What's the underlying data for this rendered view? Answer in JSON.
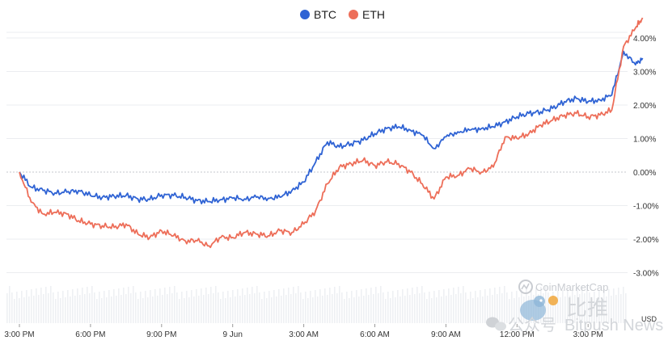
{
  "chart_data": {
    "type": "line",
    "legend_position": "top-center",
    "grid": true,
    "ylim": [
      -3.5,
      4.7
    ],
    "y_ticks": [
      "4.00%",
      "3.00%",
      "2.00%",
      "1.00%",
      "0.00%",
      "-1.00%",
      "-2.00%",
      "-3.00%"
    ],
    "y_tick_values": [
      4,
      3,
      2,
      1,
      0,
      -1,
      -2,
      -3
    ],
    "y_unit": "USD",
    "x_ticks": [
      "3:00 PM",
      "6:00 PM",
      "9:00 PM",
      "9 Jun",
      "3:00 AM",
      "6:00 AM",
      "9:00 AM",
      "12:00 PM",
      "3:00 PM"
    ],
    "x_tick_hours": [
      0,
      3,
      6,
      9,
      12,
      15,
      18,
      21,
      24
    ],
    "x_hours_range": [
      0,
      24
    ],
    "series": [
      {
        "name": "BTC",
        "color": "#2f63d4",
        "points": [
          [
            0,
            0
          ],
          [
            0.5,
            -0.45
          ],
          [
            1,
            -0.55
          ],
          [
            1.5,
            -0.62
          ],
          [
            2,
            -0.6
          ],
          [
            2.5,
            -0.55
          ],
          [
            3,
            -0.7
          ],
          [
            3.5,
            -0.75
          ],
          [
            4,
            -0.72
          ],
          [
            4.5,
            -0.7
          ],
          [
            5,
            -0.8
          ],
          [
            5.5,
            -0.82
          ],
          [
            6,
            -0.68
          ],
          [
            6.5,
            -0.7
          ],
          [
            7,
            -0.75
          ],
          [
            7.5,
            -0.85
          ],
          [
            8,
            -0.88
          ],
          [
            8.5,
            -0.82
          ],
          [
            9,
            -0.78
          ],
          [
            9.5,
            -0.8
          ],
          [
            10,
            -0.75
          ],
          [
            10.5,
            -0.78
          ],
          [
            11,
            -0.75
          ],
          [
            11.5,
            -0.55
          ],
          [
            12,
            -0.3
          ],
          [
            12.5,
            0.3
          ],
          [
            13,
            0.9
          ],
          [
            13.5,
            0.75
          ],
          [
            14,
            0.85
          ],
          [
            14.5,
            0.95
          ],
          [
            15,
            1.15
          ],
          [
            15.5,
            1.3
          ],
          [
            16,
            1.35
          ],
          [
            16.5,
            1.25
          ],
          [
            17,
            1.1
          ],
          [
            17.5,
            0.7
          ],
          [
            18,
            1.05
          ],
          [
            18.5,
            1.2
          ],
          [
            19,
            1.25
          ],
          [
            19.5,
            1.3
          ],
          [
            20,
            1.35
          ],
          [
            20.5,
            1.5
          ],
          [
            21,
            1.65
          ],
          [
            21.5,
            1.75
          ],
          [
            22,
            1.8
          ],
          [
            22.5,
            1.9
          ],
          [
            23,
            2.1
          ],
          [
            23.5,
            2.2
          ],
          [
            24,
            2.1
          ],
          [
            24.5,
            2.15
          ],
          [
            25,
            2.3
          ],
          [
            25.5,
            3.6
          ],
          [
            26,
            3.2
          ],
          [
            26.3,
            3.4
          ]
        ]
      },
      {
        "name": "ETH",
        "color": "#ed6e59",
        "points": [
          [
            0,
            0
          ],
          [
            0.5,
            -0.9
          ],
          [
            1,
            -1.25
          ],
          [
            1.5,
            -1.2
          ],
          [
            2,
            -1.25
          ],
          [
            2.5,
            -1.45
          ],
          [
            3,
            -1.55
          ],
          [
            3.5,
            -1.6
          ],
          [
            4,
            -1.65
          ],
          [
            4.5,
            -1.55
          ],
          [
            5,
            -1.85
          ],
          [
            5.5,
            -1.95
          ],
          [
            6,
            -1.75
          ],
          [
            6.5,
            -1.9
          ],
          [
            7,
            -2.05
          ],
          [
            7.5,
            -2.05
          ],
          [
            8,
            -2.2
          ],
          [
            8.5,
            -1.95
          ],
          [
            9,
            -1.95
          ],
          [
            9.5,
            -1.8
          ],
          [
            10,
            -1.85
          ],
          [
            10.5,
            -1.9
          ],
          [
            11,
            -1.75
          ],
          [
            11.5,
            -1.8
          ],
          [
            12,
            -1.55
          ],
          [
            12.5,
            -1.15
          ],
          [
            13,
            -0.35
          ],
          [
            13.5,
            0.15
          ],
          [
            14,
            0.25
          ],
          [
            14.5,
            0.35
          ],
          [
            15,
            0.2
          ],
          [
            15.5,
            0.3
          ],
          [
            16,
            0.25
          ],
          [
            16.5,
            0.0
          ],
          [
            17,
            -0.35
          ],
          [
            17.5,
            -0.8
          ],
          [
            18,
            -0.15
          ],
          [
            18.5,
            -0.1
          ],
          [
            19,
            0.1
          ],
          [
            19.5,
            0.0
          ],
          [
            20,
            0.15
          ],
          [
            20.5,
            1.05
          ],
          [
            21,
            1.0
          ],
          [
            21.5,
            1.15
          ],
          [
            22,
            1.4
          ],
          [
            22.5,
            1.55
          ],
          [
            23,
            1.7
          ],
          [
            23.5,
            1.75
          ],
          [
            24,
            1.65
          ],
          [
            24.5,
            1.7
          ],
          [
            25,
            1.85
          ],
          [
            25.5,
            3.75
          ],
          [
            26,
            4.3
          ],
          [
            26.3,
            4.6
          ]
        ]
      }
    ]
  },
  "watermarks": {
    "brand_text": "CoinMarketCap",
    "account_prefix": "公众号",
    "cn_brand": "比推",
    "account_name": "Bitpush News"
  },
  "colors": {
    "btc": "#2f63d4",
    "eth": "#ed6e59",
    "grid": "#ebedf0",
    "zero_line": "#c4c7cc",
    "volume_bars": "#eef0f3"
  }
}
